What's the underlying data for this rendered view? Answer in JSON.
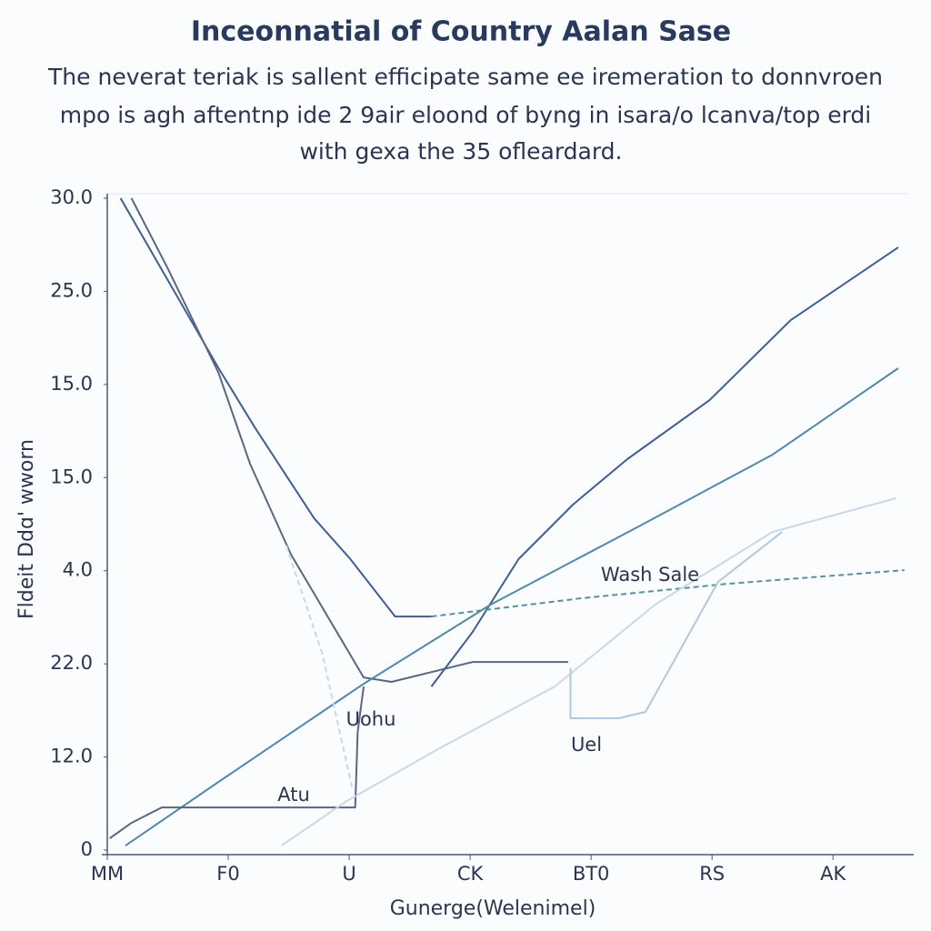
{
  "chart_data": {
    "type": "line",
    "title": "Inceonnatial of Country Aalan Sase",
    "subtitle": [
      "The neverat teriak is sallent efficipate same ee iremeration to donnvroen",
      "mpo is agh aftentnp ide 2 9air eloond of byng in isara/o lcanva/top erdi",
      "with gexa the 35 ofleardard."
    ],
    "x_label": "Gunerge(Welenimel)",
    "y_label": "Fldeit Ddɑ' wworn",
    "xlim": [
      0,
      6.63
    ],
    "ylim": [
      0,
      35
    ],
    "xticks": [
      {
        "value": 0,
        "label": "MM"
      },
      {
        "value": 1,
        "label": "F0"
      },
      {
        "value": 2,
        "label": "U"
      },
      {
        "value": 3,
        "label": "CK"
      },
      {
        "value": 4,
        "label": "BT0"
      },
      {
        "value": 5,
        "label": "RS"
      },
      {
        "value": 6,
        "label": "AK"
      }
    ],
    "yticks": [
      0,
      {
        "value": 5,
        "label": "12.0"
      },
      {
        "value": 10,
        "label": "22.0"
      },
      {
        "value": 15,
        "label": "4.0"
      },
      {
        "value": 20,
        "label": "15.0"
      },
      {
        "value": 25,
        "label": "15.0"
      },
      {
        "value": 30,
        "label": "25.0"
      },
      {
        "value": 35,
        "label": "30.0"
      }
    ],
    "annotations": [
      "Wash Sale",
      "Uohu",
      "Atu",
      "Uel"
    ],
    "series": [
      {
        "color": "#3f5f8f",
        "x": [
          0.11,
          0.92,
          1.22,
          1.71,
          2.01,
          2.38,
          2.68
        ],
        "values": [
          35.0,
          25.87,
          22.69,
          17.81,
          15.62,
          12.54,
          12.54
        ]
      },
      {
        "color": "#5c6680",
        "x": [
          0.2,
          0.5,
          0.92,
          1.18,
          1.52,
          2.12,
          2.35,
          3.02,
          3.81
        ],
        "values": [
          35.0,
          31.23,
          25.62,
          20.74,
          15.86,
          9.27,
          9.03,
          10.1,
          10.1
        ]
      },
      {
        "color": "#3f5f8f",
        "x": [
          2.68,
          3.02,
          3.4,
          3.85,
          4.3,
          4.98,
          5.65,
          6.54
        ],
        "values": [
          8.78,
          11.71,
          15.62,
          18.55,
          20.99,
          24.16,
          28.45,
          32.36
        ]
      },
      {
        "color": "#4f8aa8",
        "x": [
          0.15,
          0.92,
          2.12,
          3.17,
          4.38,
          5.5,
          6.54
        ],
        "values": [
          0.24,
          3.66,
          8.93,
          13.18,
          17.33,
          21.23,
          25.87
        ]
      },
      {
        "color": "#5a8fa0",
        "dashed": true,
        "x": [
          2.68,
          3.92,
          5.13,
          6.59
        ],
        "values": [
          12.54,
          13.52,
          14.3,
          15.03
        ]
      },
      {
        "color": "#5c6680",
        "x": [
          0.02,
          0.2,
          0.45,
          2.05,
          2.07,
          2.12
        ],
        "values": [
          0.63,
          1.46,
          2.29,
          2.29,
          6.34,
          8.78
        ]
      },
      {
        "color": "#c8d8ea",
        "x": [
          1.44,
          1.97,
          2.72,
          3.7,
          4.53,
          5.5,
          6.52
        ],
        "values": [
          0.24,
          2.59,
          5.37,
          8.78,
          13.18,
          17.08,
          18.89
        ]
      },
      {
        "color": "#c8d8ea",
        "dashed": true,
        "x": [
          1.48,
          1.78,
          2.03
        ],
        "values": [
          16.35,
          10.49,
          3.17
        ]
      },
      {
        "color": "#b0c8e0",
        "x": [
          3.83,
          3.83,
          4.23,
          4.45,
          5.05,
          5.58
        ],
        "values": [
          9.76,
          7.08,
          7.08,
          7.42,
          14.4,
          17.08
        ]
      }
    ]
  }
}
